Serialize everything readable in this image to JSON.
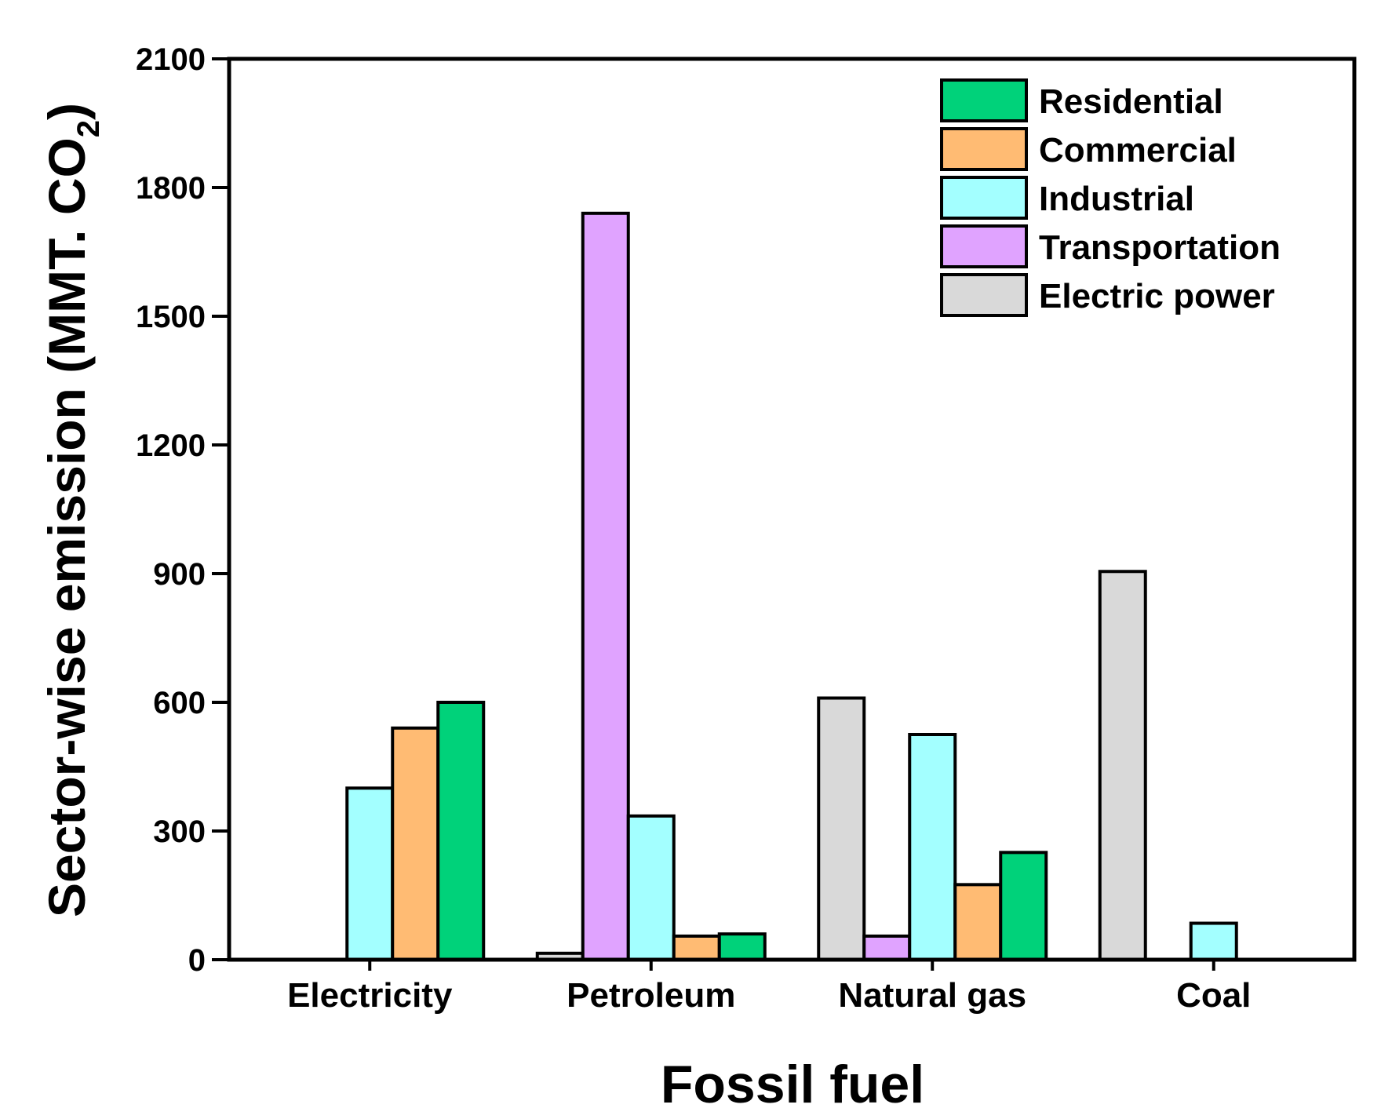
{
  "chart_data": {
    "type": "bar",
    "xlabel": "Fossil fuel",
    "ylabel": "Sector-wise emission (MMT. CO",
    "ylabel_subscript": "2",
    "ylabel_close": ")",
    "ylim": [
      0,
      2100
    ],
    "yticks": [
      0,
      300,
      600,
      900,
      1200,
      1500,
      1800,
      2100
    ],
    "categories": [
      "Electricity",
      "Petroleum",
      "Natural gas",
      "Coal"
    ],
    "series": [
      {
        "name": "Electric power",
        "color": "#d9d9d9",
        "values": [
          0,
          15,
          610,
          905
        ]
      },
      {
        "name": "Transportation",
        "color": "#e0a3ff",
        "values": [
          0,
          1740,
          55,
          0
        ]
      },
      {
        "name": "Industrial",
        "color": "#a3ffff",
        "values": [
          400,
          335,
          525,
          85
        ]
      },
      {
        "name": "Commercial",
        "color": "#ffbb73",
        "values": [
          540,
          55,
          175,
          0
        ]
      },
      {
        "name": "Residential",
        "color": "#00d27a",
        "values": [
          600,
          60,
          250,
          0
        ]
      }
    ],
    "legend": {
      "position": "top-right",
      "order": [
        "Residential",
        "Commercial",
        "Industrial",
        "Transportation",
        "Electric power"
      ]
    },
    "grid": false
  }
}
